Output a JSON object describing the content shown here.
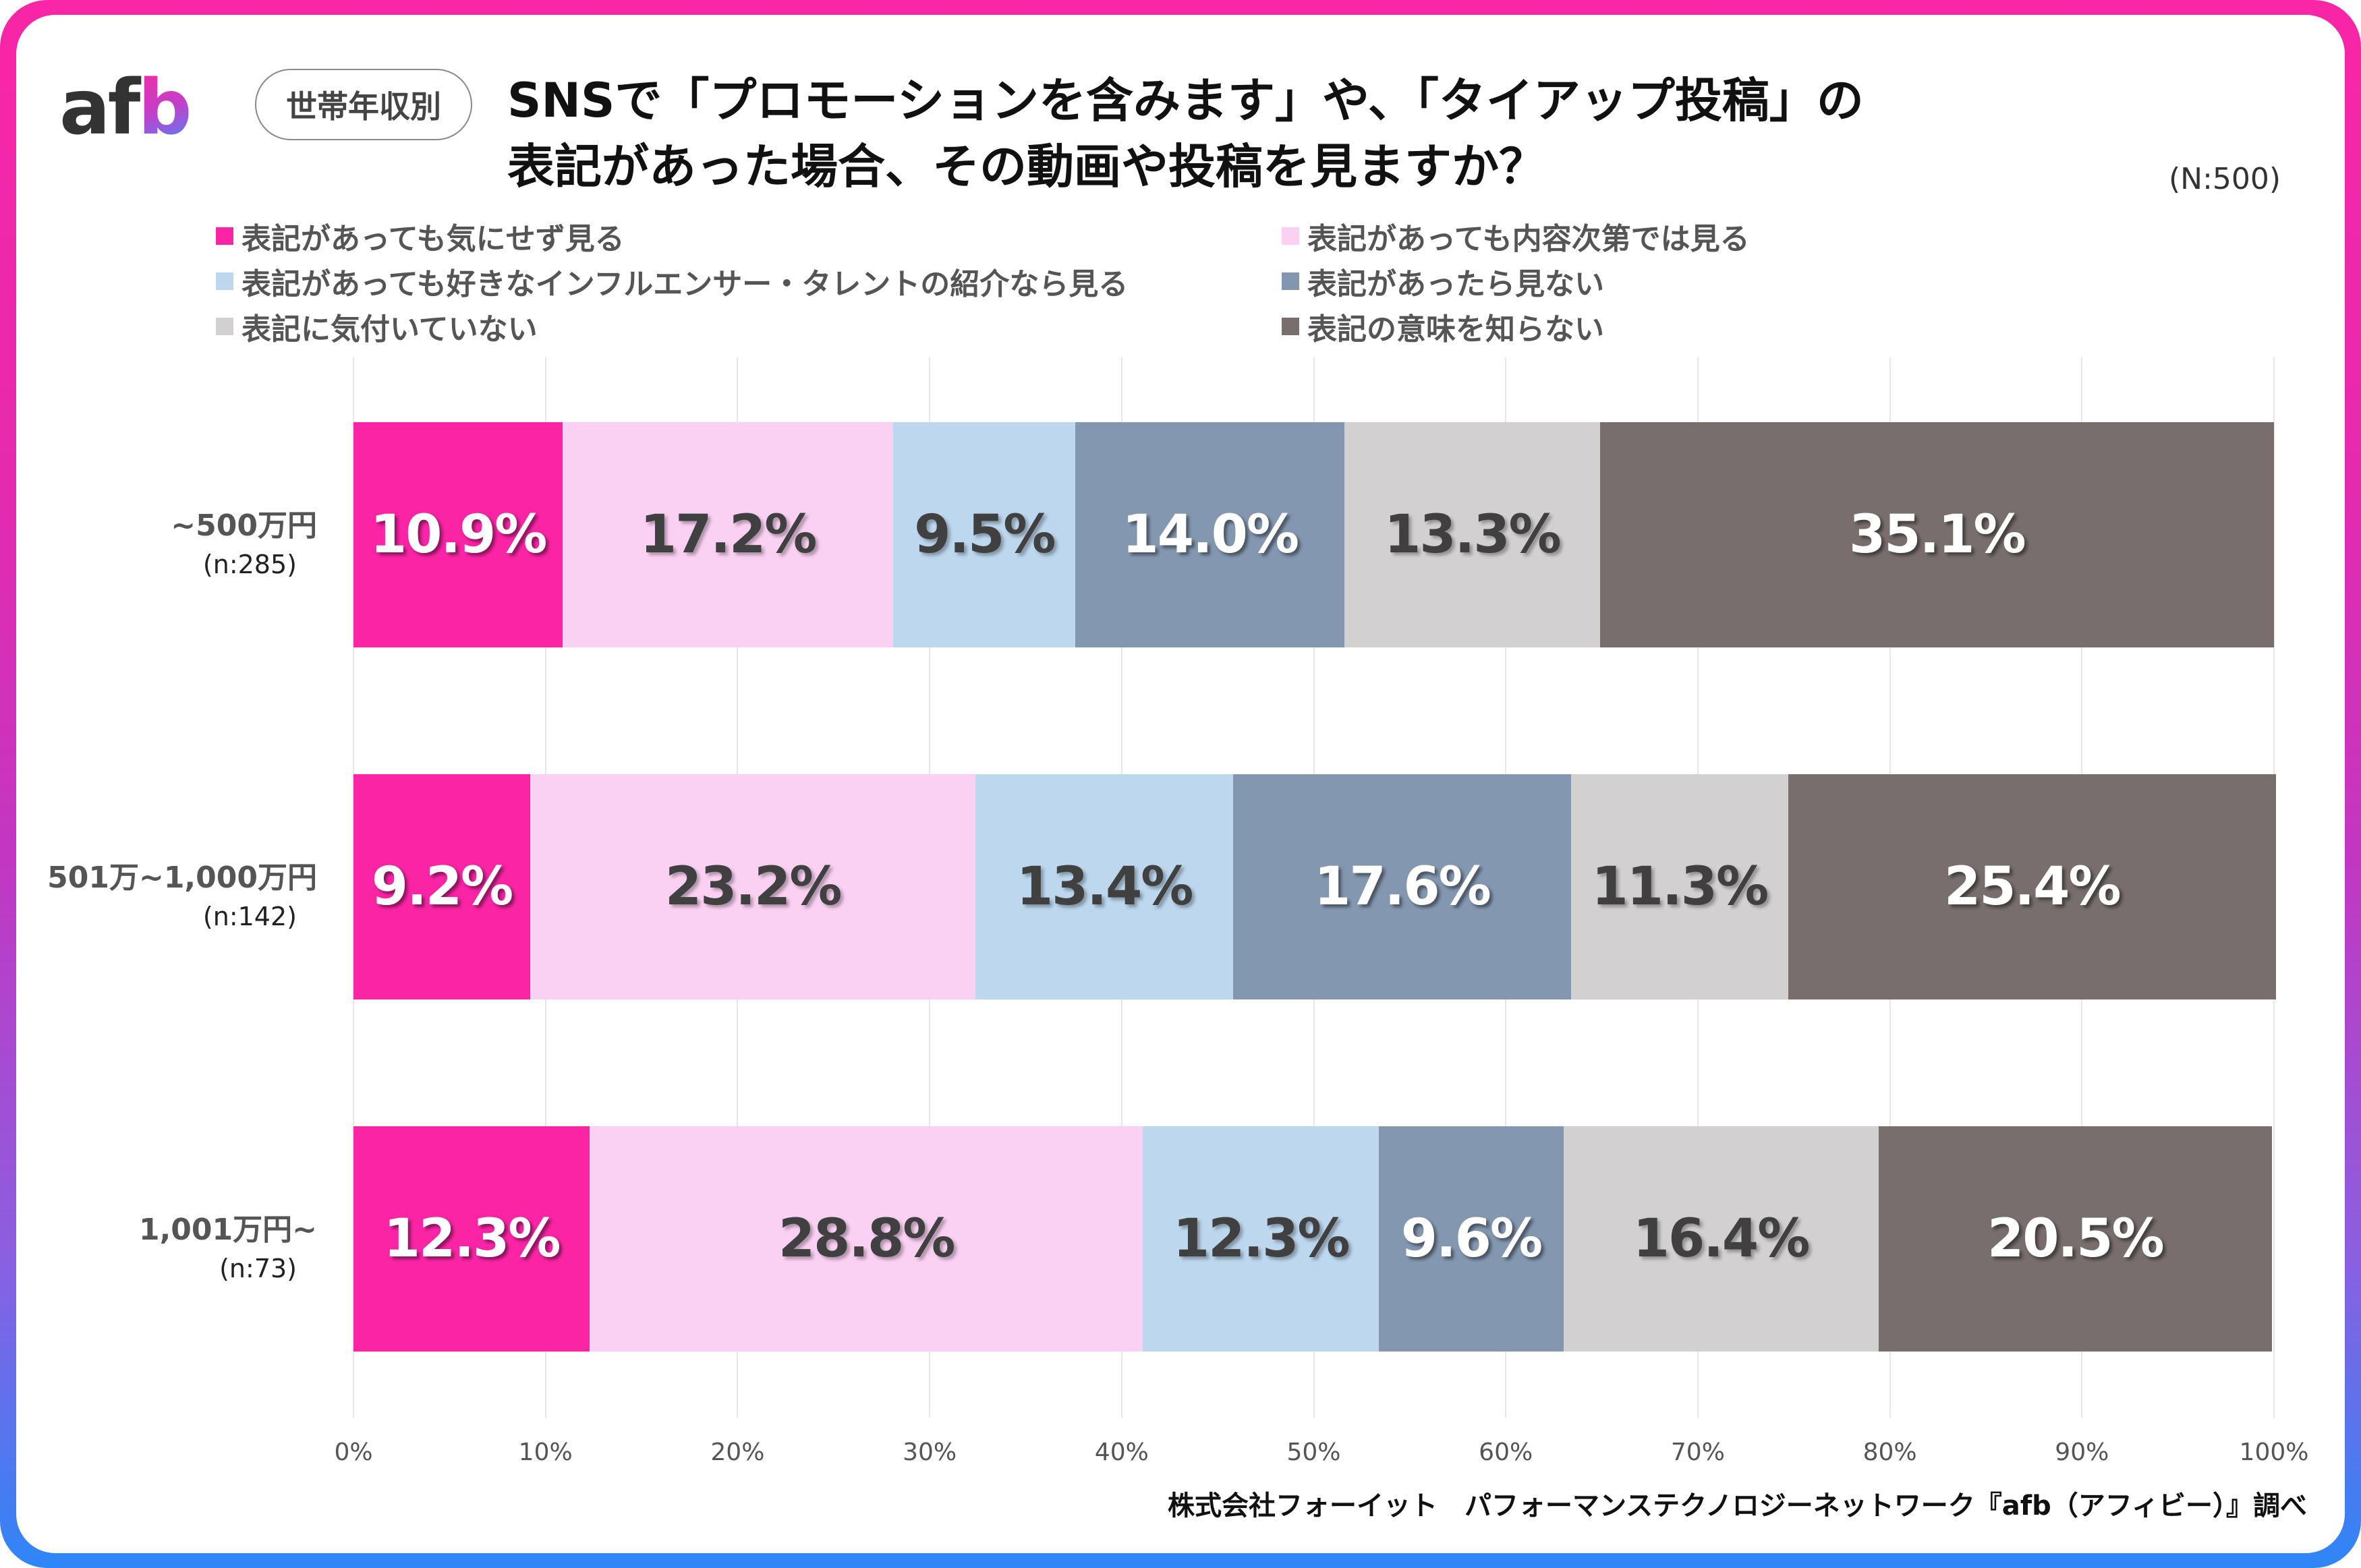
{
  "header": {
    "logo": {
      "a": "a",
      "f": "f",
      "b": "b"
    },
    "badge": "世帯年収別",
    "title_line1": "SNSで「プロモーションを含みます」や、「タイアップ投稿」の",
    "title_line2": "表記があった場合、その動画や投稿を見ますか？",
    "sample_size": "(N:500)"
  },
  "footer": {
    "source": "株式会社フォーイット　パフォーマンステクノロジーネットワーク『afb（アフィビー）』調べ"
  },
  "colors": {
    "frame_top": "#f926a6",
    "frame_bottom": "#2f86f7"
  },
  "chart_data": {
    "type": "bar",
    "orientation": "horizontal",
    "stacked": true,
    "normalized": true,
    "title": "SNSで「プロモーションを含みます」や、「タイアップ投稿」の表記があった場合、その動画や投稿を見ますか？",
    "xlabel": "",
    "ylabel": "",
    "xlim": [
      0,
      100
    ],
    "x_ticks": [
      "0%",
      "10%",
      "20%",
      "30%",
      "40%",
      "50%",
      "60%",
      "70%",
      "80%",
      "90%",
      "100%"
    ],
    "grid": true,
    "legend_position": "top",
    "categories": [
      {
        "label": "~500万円",
        "n": "(n:285)"
      },
      {
        "label": "501万~1,000万円",
        "n": "(n:142)"
      },
      {
        "label": "1,001万円~",
        "n": "(n:73)"
      }
    ],
    "series": [
      {
        "name": "表記があっても気にせず見る",
        "color": "#fa24a5",
        "label_style": "light",
        "values": [
          10.9,
          9.2,
          12.3
        ]
      },
      {
        "name": "表記があっても内容次第では見る",
        "color": "#fbd1f3",
        "label_style": "dark",
        "values": [
          17.2,
          23.2,
          28.8
        ]
      },
      {
        "name": "表記があっても好きなインフルエンサー・タレントの紹介なら見る",
        "color": "#bcd7ee",
        "label_style": "dark",
        "values": [
          9.5,
          13.4,
          12.3
        ]
      },
      {
        "name": "表記があったら見ない",
        "color": "#8397b0",
        "label_style": "light",
        "values": [
          14.0,
          17.6,
          9.6
        ]
      },
      {
        "name": "表記に気付いていない",
        "color": "#d3d0d1",
        "label_style": "dark",
        "values": [
          13.3,
          11.3,
          16.4
        ]
      },
      {
        "name": "表記の意味を知らない",
        "color": "#776e6d",
        "label_style": "light",
        "values": [
          35.1,
          25.4,
          20.5
        ]
      }
    ]
  }
}
